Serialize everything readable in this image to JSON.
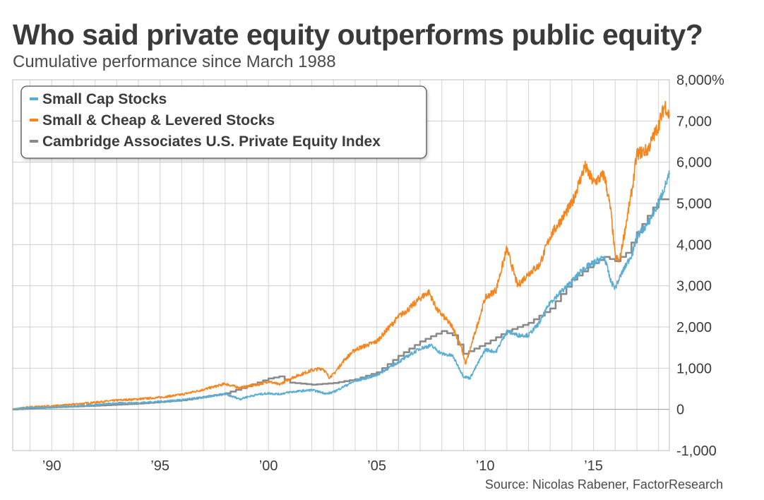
{
  "title": "Who said private equity outperforms public equity?",
  "subtitle": "Cumulative performance since March 1988",
  "source": "Source: Nicolas Rabener, FactorResearch",
  "chart_data": {
    "type": "line",
    "x_unit": "year",
    "xlim": [
      1988.2,
      2018.5
    ],
    "ylim": [
      -1000,
      8000
    ],
    "y_ticks": [
      8000,
      7000,
      6000,
      5000,
      4000,
      3000,
      2000,
      1000,
      0,
      -1000
    ],
    "y_tick_labels": [
      "8,000%",
      "7,000",
      "6,000",
      "5,000",
      "4,000",
      "3,000",
      "2,000",
      "1,000",
      "0",
      "-1,000"
    ],
    "x_ticks": [
      1990,
      1995,
      2000,
      2005,
      2010,
      2015
    ],
    "x_tick_labels": [
      "’90",
      "’95",
      "’00",
      "’05",
      "’10",
      "’15"
    ],
    "grid": true,
    "legend_position": "top-left",
    "series": [
      {
        "name": "Small Cap Stocks",
        "color": "#5aaed3",
        "points": [
          [
            1988.2,
            0
          ],
          [
            1989,
            40
          ],
          [
            1990,
            50
          ],
          [
            1991,
            80
          ],
          [
            1992,
            110
          ],
          [
            1993,
            150
          ],
          [
            1994,
            160
          ],
          [
            1995,
            190
          ],
          [
            1996,
            230
          ],
          [
            1997,
            290
          ],
          [
            1998,
            370
          ],
          [
            1998.7,
            250
          ],
          [
            1999,
            300
          ],
          [
            1999.5,
            360
          ],
          [
            2000,
            390
          ],
          [
            2000.5,
            370
          ],
          [
            2001,
            420
          ],
          [
            2002,
            470
          ],
          [
            2002.7,
            380
          ],
          [
            2003,
            420
          ],
          [
            2003.5,
            560
          ],
          [
            2004,
            690
          ],
          [
            2005,
            830
          ],
          [
            2006,
            1150
          ],
          [
            2007,
            1480
          ],
          [
            2007.5,
            1550
          ],
          [
            2008,
            1350
          ],
          [
            2008.5,
            1300
          ],
          [
            2009,
            800
          ],
          [
            2009.3,
            760
          ],
          [
            2009.8,
            1250
          ],
          [
            2010,
            1450
          ],
          [
            2010.5,
            1400
          ],
          [
            2011,
            1900
          ],
          [
            2011.5,
            1800
          ],
          [
            2012,
            1800
          ],
          [
            2012.5,
            2100
          ],
          [
            2013,
            2600
          ],
          [
            2014,
            3100
          ],
          [
            2014.5,
            3400
          ],
          [
            2015,
            3550
          ],
          [
            2015.5,
            3700
          ],
          [
            2015.8,
            3100
          ],
          [
            2016,
            2950
          ],
          [
            2016.3,
            3300
          ],
          [
            2016.8,
            3800
          ],
          [
            2017,
            4200
          ],
          [
            2017.5,
            4500
          ],
          [
            2018,
            5000
          ],
          [
            2018.5,
            5700
          ]
        ]
      },
      {
        "name": "Small & Cheap & Levered Stocks",
        "color": "#f7851e",
        "points": [
          [
            1988.2,
            0
          ],
          [
            1989,
            60
          ],
          [
            1990,
            80
          ],
          [
            1991,
            120
          ],
          [
            1992,
            170
          ],
          [
            1993,
            220
          ],
          [
            1994,
            250
          ],
          [
            1995,
            290
          ],
          [
            1996,
            360
          ],
          [
            1997,
            480
          ],
          [
            1998,
            620
          ],
          [
            1998.7,
            520
          ],
          [
            1999,
            560
          ],
          [
            1999.5,
            600
          ],
          [
            2000,
            680
          ],
          [
            2000.5,
            600
          ],
          [
            2001,
            750
          ],
          [
            2002,
            950
          ],
          [
            2002.5,
            1000
          ],
          [
            2002.8,
            780
          ],
          [
            2003,
            850
          ],
          [
            2003.5,
            1200
          ],
          [
            2004,
            1450
          ],
          [
            2005,
            1650
          ],
          [
            2006,
            2250
          ],
          [
            2006.5,
            2450
          ],
          [
            2007,
            2700
          ],
          [
            2007.4,
            2850
          ],
          [
            2007.8,
            2400
          ],
          [
            2008,
            2300
          ],
          [
            2008.5,
            2000
          ],
          [
            2008.9,
            1500
          ],
          [
            2009.1,
            1100
          ],
          [
            2009.5,
            1800
          ],
          [
            2010,
            2700
          ],
          [
            2010.5,
            2900
          ],
          [
            2011,
            3900
          ],
          [
            2011.5,
            3000
          ],
          [
            2012,
            3300
          ],
          [
            2012.5,
            3500
          ],
          [
            2013,
            4200
          ],
          [
            2014,
            5000
          ],
          [
            2014.6,
            5900
          ],
          [
            2015,
            5500
          ],
          [
            2015.5,
            5700
          ],
          [
            2015.8,
            4800
          ],
          [
            2016,
            3700
          ],
          [
            2016.2,
            3600
          ],
          [
            2016.8,
            5400
          ],
          [
            2017,
            6200
          ],
          [
            2017.5,
            6300
          ],
          [
            2018,
            6900
          ],
          [
            2018.3,
            7400
          ],
          [
            2018.5,
            7100
          ]
        ]
      },
      {
        "name": "Cambridge Associates U.S. Private Equity Index",
        "color": "#8a8a8a",
        "points": [
          [
            1988.2,
            0
          ],
          [
            1990,
            50
          ],
          [
            1992,
            90
          ],
          [
            1994,
            140
          ],
          [
            1996,
            220
          ],
          [
            1998,
            390
          ],
          [
            1999,
            560
          ],
          [
            2000,
            750
          ],
          [
            2000.5,
            800
          ],
          [
            2001,
            650
          ],
          [
            2002,
            600
          ],
          [
            2003,
            640
          ],
          [
            2004,
            730
          ],
          [
            2005,
            900
          ],
          [
            2006,
            1300
          ],
          [
            2007,
            1650
          ],
          [
            2008,
            1900
          ],
          [
            2008.5,
            1800
          ],
          [
            2009,
            1350
          ],
          [
            2010,
            1600
          ],
          [
            2011,
            1900
          ],
          [
            2012,
            2100
          ],
          [
            2013,
            2450
          ],
          [
            2014,
            3150
          ],
          [
            2015,
            3550
          ],
          [
            2015.5,
            3700
          ],
          [
            2016,
            3600
          ],
          [
            2016.5,
            3800
          ],
          [
            2017,
            4300
          ],
          [
            2017.5,
            4700
          ],
          [
            2018,
            5100
          ],
          [
            2018.5,
            5100
          ]
        ]
      }
    ]
  }
}
